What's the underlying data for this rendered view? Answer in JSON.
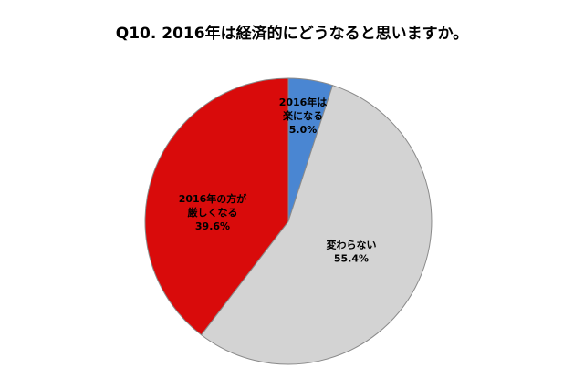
{
  "chart_data": {
    "type": "pie",
    "title": "Q10. 2016年は経済的にどうなると思いますか。",
    "slices": [
      {
        "label_lines": [
          "2016年は",
          "楽になる"
        ],
        "value": 5.0,
        "value_text": "5.0%",
        "color": "#4A86D2"
      },
      {
        "label_lines": [
          "変わらない"
        ],
        "value": 55.4,
        "value_text": "55.4%",
        "color": "#D3D3D3"
      },
      {
        "label_lines": [
          "2016年の方が",
          "厳しくなる"
        ],
        "value": 39.6,
        "value_text": "39.6%",
        "color": "#D90B0B"
      }
    ]
  }
}
